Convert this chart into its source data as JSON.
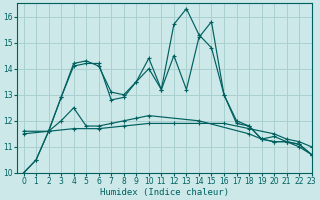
{
  "xlabel": "Humidex (Indice chaleur)",
  "background_color": "#cce8e8",
  "grid_color": "#aad0d0",
  "line_color": "#006060",
  "xlim": [
    -0.5,
    23
  ],
  "ylim": [
    10,
    16.5
  ],
  "yticks": [
    10,
    11,
    12,
    13,
    14,
    15,
    16
  ],
  "xticks": [
    0,
    1,
    2,
    3,
    4,
    5,
    6,
    7,
    8,
    9,
    10,
    11,
    12,
    13,
    14,
    15,
    16,
    17,
    18,
    19,
    20,
    21,
    22,
    23
  ],
  "line1_x": [
    0,
    1,
    2,
    3,
    4,
    5,
    6,
    7,
    8,
    9,
    10,
    11,
    12,
    13,
    14,
    15,
    16,
    17,
    18,
    19,
    20,
    21,
    22,
    23
  ],
  "line1_y": [
    10.0,
    10.5,
    11.6,
    12.9,
    14.2,
    14.3,
    14.1,
    13.1,
    13.0,
    13.5,
    14.4,
    13.2,
    15.7,
    16.3,
    15.3,
    14.8,
    13.0,
    11.9,
    11.8,
    11.3,
    11.2,
    11.2,
    11.0,
    10.7
  ],
  "line2_x": [
    0,
    1,
    2,
    3,
    4,
    5,
    6,
    7,
    8,
    9,
    10,
    11,
    12,
    13,
    14,
    15,
    16,
    17,
    18,
    19,
    20,
    21,
    22,
    23
  ],
  "line2_y": [
    10.0,
    10.5,
    11.6,
    12.9,
    14.1,
    14.2,
    14.2,
    12.8,
    12.9,
    13.5,
    14.0,
    13.2,
    14.5,
    13.2,
    15.2,
    15.8,
    13.0,
    12.0,
    11.8,
    11.3,
    11.2,
    11.2,
    11.1,
    10.7
  ],
  "line3_x": [
    0,
    2,
    3,
    4,
    5,
    6,
    7,
    8,
    9,
    10,
    14,
    18,
    19,
    20,
    21,
    22,
    23
  ],
  "line3_y": [
    11.5,
    11.6,
    12.0,
    12.5,
    11.8,
    11.8,
    11.9,
    12.0,
    12.1,
    12.2,
    12.0,
    11.5,
    11.3,
    11.4,
    11.2,
    11.1,
    10.7
  ],
  "line4_x": [
    0,
    2,
    4,
    6,
    8,
    10,
    12,
    14,
    16,
    18,
    20,
    21,
    22,
    23
  ],
  "line4_y": [
    11.6,
    11.6,
    11.7,
    11.7,
    11.8,
    11.9,
    11.9,
    11.9,
    11.9,
    11.7,
    11.5,
    11.3,
    11.2,
    11.0
  ]
}
